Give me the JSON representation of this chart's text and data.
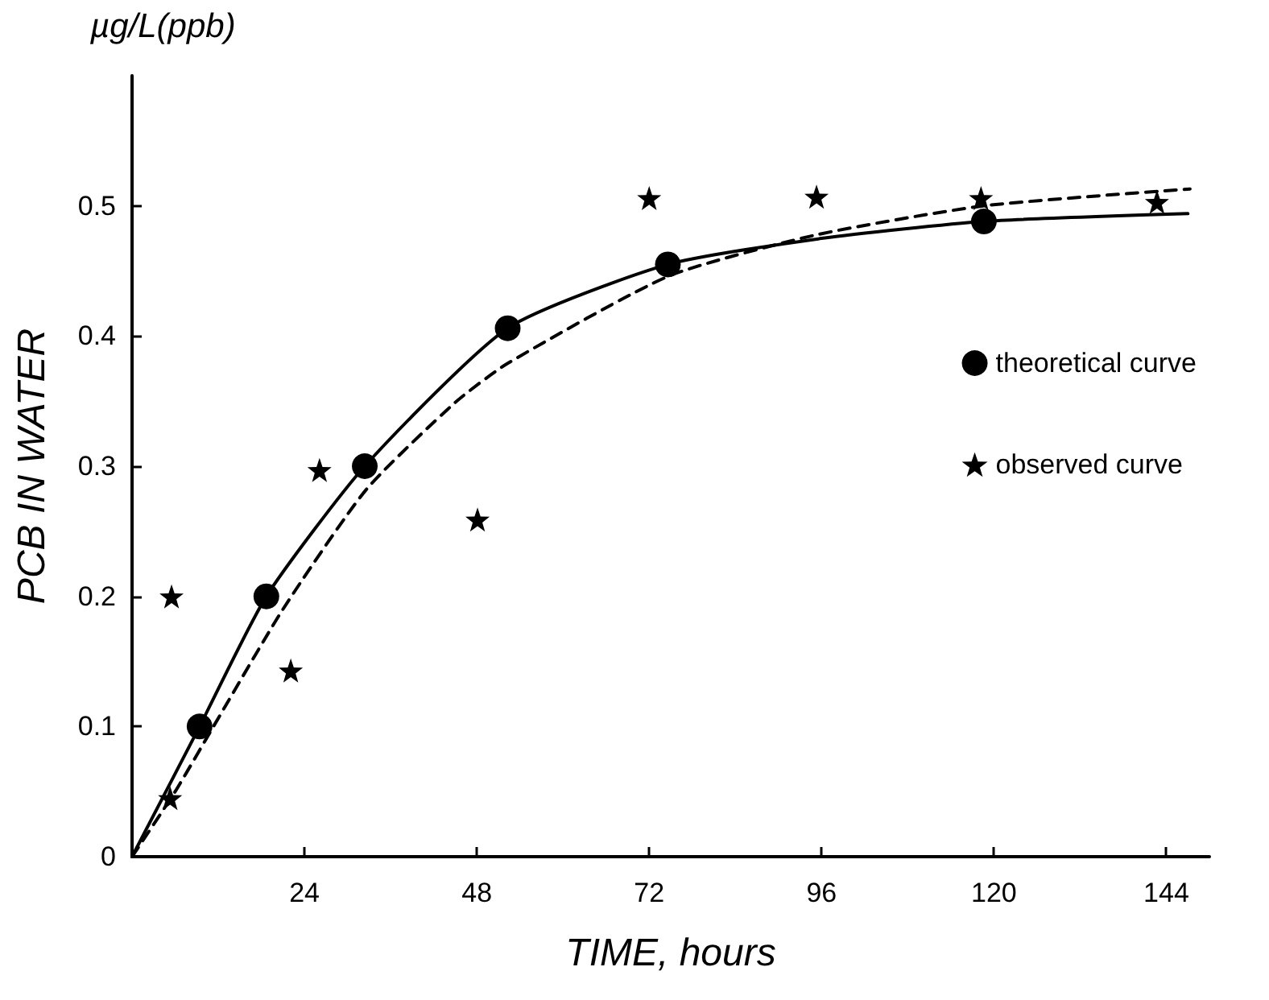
{
  "chart_data": {
    "type": "line",
    "xlabel": "TIME, hours",
    "ylabel": "PCB IN WATER",
    "annotations": [
      "µg/L(ppb)"
    ],
    "xlim": [
      0,
      150
    ],
    "xticks": [
      24,
      48,
      72,
      96,
      120,
      144
    ],
    "ylim": [
      0,
      0.6
    ],
    "yticks": [
      0,
      0.1,
      0.2,
      0.3,
      0.4,
      0.5
    ],
    "grid": false,
    "legend": "right",
    "series": [
      {
        "color": "#000000",
        "line_style": "solid",
        "marker": "none",
        "x": [
          0,
          9.4,
          18.7,
          32.4,
          52.3,
          74.6,
          96,
          118.6,
          147
        ],
        "values": [
          0,
          0.1,
          0.2,
          0.3,
          0.406,
          0.455,
          0.475,
          0.488,
          0.494
        ]
      },
      {
        "type": "scatter",
        "name": "theoretical curve",
        "color": "#000000",
        "marker": "circle",
        "x": [
          9.4,
          18.7,
          32.4,
          52.3,
          74.6,
          118.6
        ],
        "values": [
          0.1,
          0.2,
          0.3,
          0.406,
          0.455,
          0.488
        ]
      },
      {
        "color": "#000000",
        "line_style": "dashed",
        "marker": "none",
        "x": [
          0,
          6,
          10.8,
          21,
          32.6,
          45,
          52.3,
          74.7,
          95.5,
          118.6,
          147.3
        ],
        "values": [
          0,
          0.05,
          0.095,
          0.19,
          0.282,
          0.349,
          0.379,
          0.446,
          0.478,
          0.5,
          0.513
        ]
      },
      {
        "type": "scatter",
        "name": "observed curve",
        "color": "#000000",
        "marker": "star",
        "x": [
          5.3,
          5.5,
          22.1,
          26.1,
          48.1,
          72,
          95.3,
          118.2,
          142.7
        ],
        "values": [
          0.045,
          0.2,
          0.143,
          0.297,
          0.259,
          0.506,
          0.507,
          0.506,
          0.503
        ]
      }
    ]
  }
}
